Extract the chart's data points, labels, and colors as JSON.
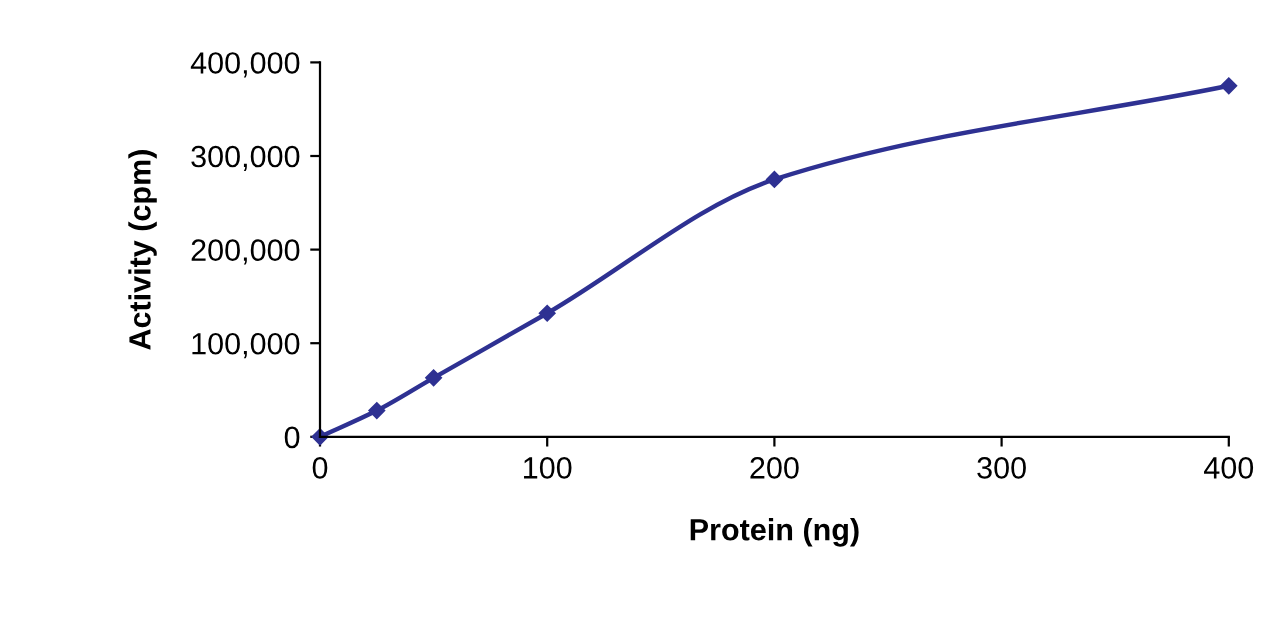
{
  "chart_data": {
    "type": "line",
    "xlabel": "Protein (ng)",
    "ylabel": "Activity (cpm)",
    "x": [
      0,
      25,
      50,
      100,
      200,
      400
    ],
    "series": [
      {
        "color": "#2e3192",
        "values": [
          0,
          28000,
          63000,
          132000,
          275000,
          375000
        ]
      }
    ],
    "xlim": [
      0,
      400
    ],
    "xticks": [
      0,
      100,
      200,
      300,
      400
    ],
    "ylim": [
      0,
      400000
    ],
    "yticks": [
      {
        "value": 0,
        "label": "0"
      },
      {
        "value": 100000,
        "label": "100,000"
      },
      {
        "value": 200000,
        "label": "200,000"
      },
      {
        "value": 300000,
        "label": "300,000"
      },
      {
        "value": 400000,
        "label": "400,000"
      }
    ],
    "grid": false,
    "marker": "diamond",
    "line_style": "solid"
  }
}
